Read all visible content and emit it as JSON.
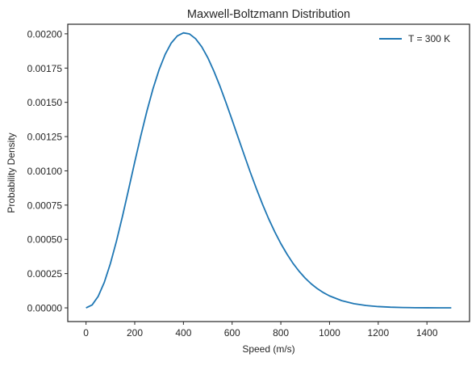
{
  "chart_data": {
    "type": "line",
    "title": "Maxwell-Boltzmann Distribution",
    "xlabel": "Speed (m/s)",
    "ylabel": "Probability Density",
    "xlim": [
      -75,
      1575
    ],
    "ylim": [
      -0.0001,
      0.00207
    ],
    "xticks": [
      0,
      200,
      400,
      600,
      800,
      1000,
      1200,
      1400
    ],
    "xtick_labels": [
      "0",
      "200",
      "400",
      "600",
      "800",
      "1000",
      "1200",
      "1400"
    ],
    "yticks": [
      0,
      0.00025,
      0.0005,
      0.00075,
      0.001,
      0.00125,
      0.0015,
      0.00175,
      0.002
    ],
    "ytick_labels": [
      "0.00000",
      "0.00025",
      "0.00050",
      "0.00075",
      "0.00100",
      "0.00125",
      "0.00150",
      "0.00175",
      "0.00200"
    ],
    "grid": false,
    "legend_position": "top-right",
    "series": [
      {
        "name": "T = 300 K",
        "color": "#1f77b4",
        "x": [
          0,
          25,
          50,
          75,
          100,
          125,
          150,
          175,
          200,
          225,
          250,
          275,
          300,
          325,
          350,
          375,
          400,
          425,
          450,
          475,
          500,
          525,
          550,
          575,
          600,
          625,
          650,
          675,
          700,
          725,
          750,
          775,
          800,
          825,
          850,
          875,
          900,
          925,
          950,
          975,
          1000,
          1050,
          1100,
          1150,
          1200,
          1250,
          1300,
          1350,
          1400,
          1450,
          1500
        ],
        "y": [
          0.0,
          2.13e-05,
          8.44e-05,
          0.000186,
          0.000323,
          0.000487,
          0.000671,
          0.000866,
          0.001064,
          0.001256,
          0.001436,
          0.001599,
          0.001738,
          0.00185,
          0.001933,
          0.001985,
          0.002007,
          0.001999,
          0.001964,
          0.001906,
          0.001826,
          0.001728,
          0.001618,
          0.001497,
          0.001371,
          0.001242,
          0.001114,
          0.000988,
          0.000868,
          0.000755,
          0.00065,
          0.000555,
          0.000469,
          0.000393,
          0.000325,
          0.000267,
          0.000217,
          0.000175,
          0.00014,
          0.000111,
          8.72e-05,
          5.25e-05,
          3.05e-05,
          1.71e-05,
          9.3e-06,
          4.9e-06,
          2.5e-06,
          1.2e-06,
          6e-07,
          3e-07,
          1e-07
        ]
      }
    ]
  }
}
